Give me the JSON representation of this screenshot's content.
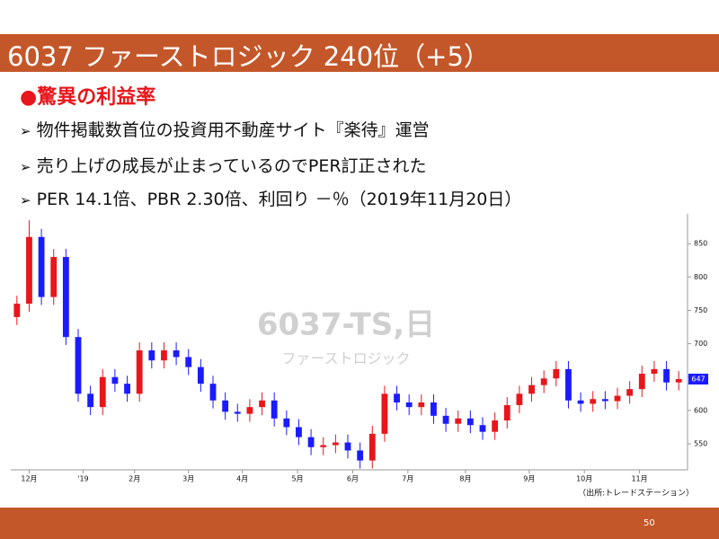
{
  "slide": {
    "title": "6037 ファーストロジック 240位（+5）",
    "heading": "●驚異の利益率",
    "bullets": [
      "物件掲載数首位の投資用不動産サイト『楽待』運営",
      "売り上げの成長が止まっているのでPER訂正された",
      "PER 14.1倍、PBR 2.30倍、利回り －％（2019年11月20日）"
    ],
    "page_number": "50"
  },
  "chart_data": {
    "type": "candlestick",
    "watermark": "6037-TS,日",
    "watermark_sub": "ファーストロジック",
    "source": "（出所:トレードステーション）",
    "up_color": "#e8161b",
    "down_color": "#1b1bff",
    "open": [
      740,
      760,
      860,
      770,
      830,
      710,
      625,
      605,
      650,
      640,
      625,
      690,
      675,
      690,
      680,
      665,
      640,
      615,
      598,
      595,
      605,
      615,
      588,
      575,
      560,
      545,
      548,
      552,
      540,
      525,
      565,
      625,
      612,
      605,
      612,
      592,
      580,
      588,
      578,
      568,
      585,
      608,
      625,
      638,
      648,
      662,
      615,
      610,
      617,
      614,
      622,
      632,
      655,
      662,
      642
    ],
    "high": [
      772,
      885,
      872,
      842,
      842,
      722,
      637,
      662,
      662,
      652,
      702,
      702,
      702,
      702,
      692,
      677,
      652,
      627,
      610,
      617,
      627,
      627,
      600,
      587,
      572,
      560,
      564,
      564,
      552,
      577,
      637,
      637,
      624,
      624,
      624,
      604,
      600,
      600,
      590,
      597,
      620,
      637,
      650,
      660,
      674,
      674,
      627,
      629,
      629,
      634,
      644,
      667,
      674,
      674,
      659
    ],
    "low": [
      728,
      748,
      758,
      758,
      698,
      613,
      593,
      593,
      628,
      613,
      613,
      663,
      663,
      668,
      653,
      628,
      603,
      586,
      583,
      583,
      593,
      576,
      563,
      548,
      533,
      533,
      536,
      528,
      513,
      513,
      553,
      600,
      593,
      593,
      580,
      568,
      568,
      566,
      556,
      556,
      573,
      596,
      613,
      626,
      636,
      603,
      598,
      598,
      602,
      602,
      610,
      620,
      643,
      630,
      630
    ],
    "close": [
      760,
      860,
      770,
      830,
      710,
      625,
      605,
      650,
      640,
      625,
      690,
      675,
      690,
      680,
      665,
      640,
      615,
      598,
      595,
      605,
      615,
      588,
      575,
      560,
      545,
      548,
      552,
      540,
      525,
      565,
      625,
      612,
      605,
      612,
      592,
      580,
      588,
      578,
      568,
      585,
      608,
      625,
      638,
      648,
      662,
      615,
      610,
      617,
      614,
      622,
      632,
      655,
      662,
      642,
      647
    ],
    "last_price": 647,
    "xlim": [
      -0.5,
      54.5
    ],
    "xticks": [
      {
        "value": 1,
        "label": "12月"
      },
      {
        "value": 5.4,
        "label": "'19"
      },
      {
        "value": 9.6,
        "label": "2月"
      },
      {
        "value": 14,
        "label": "3月"
      },
      {
        "value": 18.4,
        "label": "4月"
      },
      {
        "value": 22.9,
        "label": "5月"
      },
      {
        "value": 27.4,
        "label": "6月"
      },
      {
        "value": 31.9,
        "label": "7月"
      },
      {
        "value": 36.6,
        "label": "8月"
      },
      {
        "value": 41.8,
        "label": "9月"
      },
      {
        "value": 46.3,
        "label": "10月"
      },
      {
        "value": 50.8,
        "label": "11月"
      }
    ],
    "ylim": [
      511,
      892
    ],
    "yticks": [
      550,
      600,
      650,
      700,
      750,
      800,
      850
    ]
  }
}
